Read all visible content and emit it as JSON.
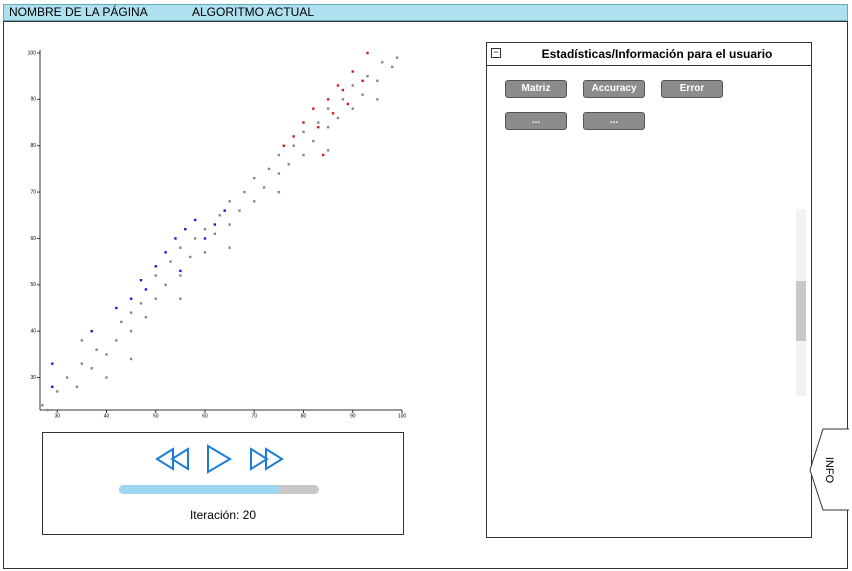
{
  "header": {
    "page_name": "NOMBRE DE LA PÁGINA",
    "algorithm": "ALGORITMO ACTUAL"
  },
  "chart_data": {
    "type": "scatter",
    "xlim": [
      26.5,
      100
    ],
    "ylim": [
      23,
      100
    ],
    "xticks": [
      30,
      40,
      50,
      60,
      70,
      80,
      90,
      100
    ],
    "yticks": [
      30,
      40,
      50,
      60,
      70,
      80,
      90,
      100
    ],
    "series": [
      {
        "color": "#888888",
        "x": [
          27,
          28,
          30,
          32,
          34,
          35,
          37,
          38,
          40,
          42,
          43,
          45,
          45,
          47,
          48,
          50,
          50,
          52,
          53,
          55,
          55,
          57,
          58,
          60,
          60,
          62,
          63,
          65,
          65,
          67,
          68,
          70,
          70,
          72,
          73,
          75,
          75,
          77,
          78,
          80,
          80,
          82,
          83,
          85,
          85,
          87,
          88,
          90,
          90,
          92,
          93,
          95,
          96,
          98,
          99,
          35,
          40,
          45,
          55,
          65,
          75,
          85,
          95
        ],
        "values": [
          24,
          23,
          27,
          30,
          28,
          33,
          32,
          36,
          35,
          38,
          42,
          40,
          44,
          46,
          43,
          47,
          52,
          50,
          55,
          52,
          58,
          56,
          60,
          57,
          62,
          61,
          65,
          63,
          68,
          66,
          70,
          68,
          73,
          71,
          75,
          74,
          78,
          76,
          80,
          78,
          83,
          81,
          85,
          84,
          88,
          86,
          90,
          88,
          93,
          91,
          95,
          94,
          98,
          97,
          99,
          38,
          30,
          34,
          47,
          58,
          70,
          79,
          90
        ]
      },
      {
        "color": "#1a1ad6",
        "x": [
          29,
          29,
          37,
          42,
          45,
          47,
          50,
          52,
          54,
          56,
          58,
          60,
          62,
          55,
          48,
          64
        ],
        "values": [
          33,
          28,
          40,
          45,
          47,
          51,
          54,
          57,
          60,
          62,
          64,
          60,
          63,
          53,
          49,
          66
        ]
      },
      {
        "color": "#d41a1a",
        "x": [
          80,
          82,
          83,
          85,
          86,
          88,
          90,
          92,
          93,
          78,
          76,
          87,
          84,
          89
        ],
        "values": [
          85,
          88,
          84,
          90,
          87,
          92,
          96,
          94,
          100,
          82,
          80,
          93,
          78,
          89
        ]
      }
    ]
  },
  "controls": {
    "iteration": "Iteración: 20"
  },
  "panel": {
    "title": "Estadísticas/Información para el usuario",
    "buttons": [
      "Matriz",
      "Accuracy",
      "Error",
      "...",
      "..."
    ]
  },
  "info_tab": "INFO"
}
